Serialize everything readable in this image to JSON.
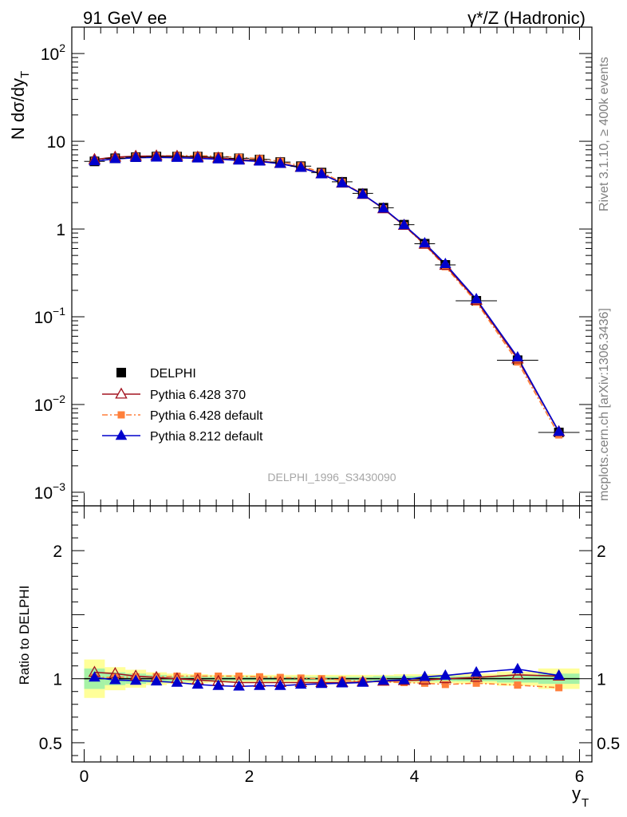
{
  "header": {
    "left_label": "91 GeV ee",
    "right_label": "γ*/Z (Hadronic)"
  },
  "side_labels": {
    "rivet": "Rivet 3.1.10, ≥ 400k events",
    "mcplots": "mcplots.cern.ch [arXiv:1306.3436]"
  },
  "watermark": "DELPHI_1996_S3430090",
  "colors": {
    "data": "#000000",
    "p6_370": "#a31420",
    "p6_default": "#ff7f3a",
    "p8": "#0000cc",
    "band_green": "#a6f2a6",
    "band_yellow": "#ffff99"
  },
  "chart_data": [
    {
      "type": "scatter",
      "title": "",
      "ylabel": "N dσ/dy",
      "ylabel_sub": "T",
      "yscale": "log",
      "ylim": [
        0.0007,
        200
      ],
      "xlim": [
        -0.15,
        6.15
      ],
      "ytick_labels": [
        {
          "base": "10",
          "exp": "2",
          "value": 100
        },
        {
          "base": "10",
          "exp": "",
          "value": 10
        },
        {
          "base": "1",
          "exp": "",
          "value": 1
        },
        {
          "base": "10",
          "exp": "−1",
          "value": 0.1
        },
        {
          "base": "10",
          "exp": "−2",
          "value": 0.01
        },
        {
          "base": "10",
          "exp": "−3",
          "value": 0.001
        }
      ],
      "x": [
        0.125,
        0.375,
        0.625,
        0.875,
        1.125,
        1.375,
        1.625,
        1.875,
        2.125,
        2.375,
        2.625,
        2.875,
        3.125,
        3.375,
        3.625,
        3.875,
        4.125,
        4.375,
        4.75,
        5.25,
        5.75
      ],
      "x_halfwidth": [
        0.125,
        0.125,
        0.125,
        0.125,
        0.125,
        0.125,
        0.125,
        0.125,
        0.125,
        0.125,
        0.125,
        0.125,
        0.125,
        0.125,
        0.125,
        0.125,
        0.125,
        0.125,
        0.25,
        0.25,
        0.25
      ],
      "series": [
        {
          "name": "DELPHI",
          "key": "data",
          "marker": "square",
          "values": [
            5.9,
            6.4,
            6.6,
            6.7,
            6.7,
            6.7,
            6.6,
            6.4,
            6.2,
            5.8,
            5.2,
            4.4,
            3.45,
            2.55,
            1.75,
            1.12,
            0.68,
            0.39,
            0.152,
            0.032,
            0.0048
          ]
        },
        {
          "name": "Pythia 6.428 370",
          "key": "p6_370",
          "marker": "open-triangle",
          "values": [
            6.2,
            6.6,
            6.75,
            6.8,
            6.75,
            6.6,
            6.45,
            6.2,
            6.0,
            5.6,
            5.05,
            4.25,
            3.33,
            2.48,
            1.7,
            1.1,
            0.67,
            0.385,
            0.154,
            0.033,
            0.0049
          ]
        },
        {
          "name": "Pythia 6.428 default",
          "key": "p6_default",
          "marker": "square-small",
          "values": [
            5.95,
            6.45,
            6.7,
            6.8,
            6.85,
            6.85,
            6.75,
            6.55,
            6.35,
            5.9,
            5.25,
            4.42,
            3.42,
            2.5,
            1.7,
            1.09,
            0.66,
            0.372,
            0.147,
            0.0305,
            0.0045
          ]
        },
        {
          "name": "Pythia 8.212 default",
          "key": "p8",
          "marker": "triangle",
          "values": [
            5.95,
            6.3,
            6.5,
            6.55,
            6.5,
            6.4,
            6.25,
            6.05,
            5.9,
            5.55,
            5.0,
            4.22,
            3.33,
            2.48,
            1.72,
            1.11,
            0.69,
            0.4,
            0.159,
            0.0345,
            0.0049
          ]
        }
      ],
      "legend": {
        "placement": "lower-left"
      }
    },
    {
      "type": "line",
      "ylabel": "Ratio to DELPHI",
      "xlabel": "y",
      "xlabel_sub": "T",
      "ylim": [
        0.35,
        2.35
      ],
      "xlim": [
        -0.15,
        6.15
      ],
      "ytick_labels": [
        "2",
        "1",
        "0.5"
      ],
      "xtick_labels": [
        "0",
        "2",
        "4",
        "6"
      ],
      "band_inner": [
        0.08,
        0.05,
        0.04,
        0.03,
        0.02,
        0.02,
        0.015,
        0.015,
        0.015,
        0.015,
        0.015,
        0.015,
        0.015,
        0.015,
        0.02,
        0.02,
        0.02,
        0.02,
        0.02,
        0.03,
        0.04
      ],
      "band_outer": [
        0.15,
        0.09,
        0.07,
        0.05,
        0.04,
        0.035,
        0.03,
        0.03,
        0.03,
        0.03,
        0.03,
        0.03,
        0.03,
        0.03,
        0.03,
        0.035,
        0.035,
        0.035,
        0.04,
        0.055,
        0.08
      ],
      "series": [
        {
          "name": "Pythia 6.428 370",
          "key": "p6_370",
          "values": [
            1.05,
            1.04,
            1.02,
            1.01,
            1.0,
            0.99,
            0.98,
            0.97,
            0.97,
            0.97,
            0.97,
            0.97,
            0.97,
            0.975,
            0.98,
            0.985,
            0.99,
            1.0,
            1.01,
            1.03,
            1.02
          ]
        },
        {
          "name": "Pythia 6.428 default",
          "key": "p6_default",
          "values": [
            1.01,
            1.01,
            1.015,
            1.015,
            1.02,
            1.02,
            1.02,
            1.02,
            1.015,
            1.01,
            1.005,
            1.0,
            0.99,
            0.98,
            0.975,
            0.97,
            0.965,
            0.955,
            0.965,
            0.95,
            0.93
          ]
        },
        {
          "name": "Pythia 8.212 default",
          "key": "p8",
          "values": [
            1.01,
            0.99,
            0.985,
            0.98,
            0.97,
            0.955,
            0.945,
            0.94,
            0.945,
            0.945,
            0.955,
            0.96,
            0.965,
            0.97,
            0.985,
            0.99,
            1.015,
            1.025,
            1.05,
            1.075,
            1.025
          ]
        }
      ]
    }
  ]
}
